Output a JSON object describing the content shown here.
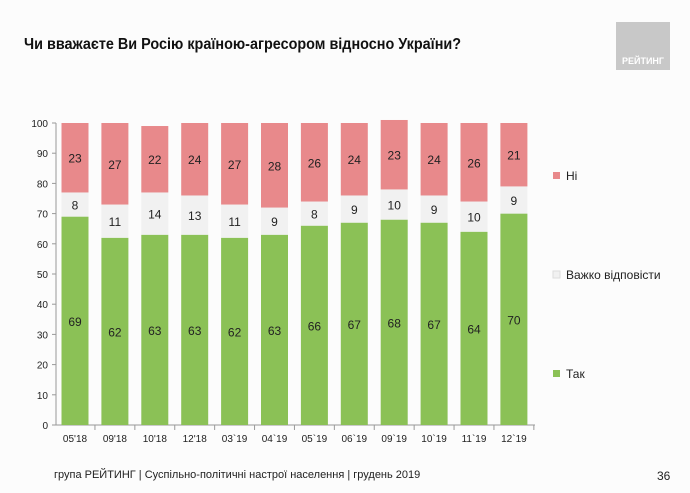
{
  "header": {
    "title": "Чи вважаєте Ви Росію країною-агресором відносно України?",
    "logo": "РЕЙТИНГ"
  },
  "footer": {
    "text": "група РЕЙТИНГ | Суспільно-політичні настрої населення  | грудень 2019",
    "page": "36"
  },
  "chart_data": {
    "type": "bar",
    "stacked": true,
    "title": "Чи вважаєте Ви Росію країною-агресором відносно України?",
    "categories": [
      "05'18",
      "09'18",
      "10'18",
      "12'18",
      "03`19",
      "04`19",
      "05`19",
      "06`19",
      "09`19",
      "10`19",
      "11`19",
      "12`19"
    ],
    "series": [
      {
        "name": "Так",
        "color": "#8bc156",
        "values": [
          69,
          62,
          63,
          63,
          62,
          63,
          66,
          67,
          68,
          67,
          64,
          70
        ]
      },
      {
        "name": "Важко відповісти",
        "color": "#f1f1f1",
        "values": [
          8,
          11,
          14,
          13,
          11,
          9,
          8,
          9,
          10,
          9,
          10,
          9
        ]
      },
      {
        "name": "Ні",
        "color": "#e8898b",
        "values": [
          23,
          27,
          22,
          24,
          27,
          28,
          26,
          24,
          23,
          24,
          26,
          21
        ]
      }
    ],
    "ylim": [
      0,
      100
    ],
    "yticks": [
      0,
      10,
      20,
      30,
      40,
      50,
      60,
      70,
      80,
      90,
      100
    ],
    "legend_placement": "right"
  }
}
